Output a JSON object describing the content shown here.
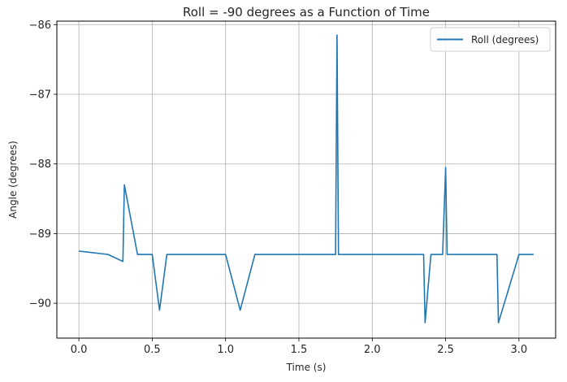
{
  "chart_data": {
    "type": "line",
    "title": "Roll = -90 degrees as a Function of Time",
    "xlabel": "Time (s)",
    "ylabel": "Angle (degrees)",
    "xlim": [
      -0.15,
      3.25
    ],
    "ylim": [
      -90.5,
      -85.95
    ],
    "xticks": [
      0.0,
      0.5,
      1.0,
      1.5,
      2.0,
      2.5,
      3.0
    ],
    "xtick_labels": [
      "0.0",
      "0.5",
      "1.0",
      "1.5",
      "2.0",
      "2.5",
      "3.0"
    ],
    "yticks": [
      -90,
      -89,
      -88,
      -87,
      -86
    ],
    "ytick_labels": [
      "−90",
      "−89",
      "−88",
      "−87",
      "−86"
    ],
    "grid": true,
    "legend_position": "top-right",
    "series": [
      {
        "name": "Roll (degrees)",
        "color": "#1f77b4",
        "x": [
          0.0,
          0.2,
          0.3,
          0.31,
          0.4,
          0.5,
          0.55,
          0.6,
          0.8,
          1.0,
          1.1,
          1.2,
          1.3,
          1.4,
          1.5,
          1.6,
          1.7,
          1.75,
          1.76,
          1.77,
          1.78,
          1.9,
          2.0,
          2.2,
          2.35,
          2.36,
          2.4,
          2.48,
          2.5,
          2.51,
          2.52,
          2.7,
          2.85,
          2.86,
          3.0,
          3.1
        ],
        "y": [
          -89.25,
          -89.3,
          -89.4,
          -88.3,
          -89.3,
          -89.3,
          -90.1,
          -89.3,
          -89.3,
          -89.3,
          -90.1,
          -89.3,
          -89.3,
          -89.3,
          -89.3,
          -89.3,
          -89.3,
          -89.3,
          -86.15,
          -89.3,
          -89.3,
          -89.3,
          -89.3,
          -89.3,
          -89.3,
          -90.28,
          -89.3,
          -89.3,
          -88.05,
          -89.3,
          -89.3,
          -89.3,
          -89.3,
          -90.28,
          -89.3,
          -89.3
        ]
      }
    ]
  }
}
